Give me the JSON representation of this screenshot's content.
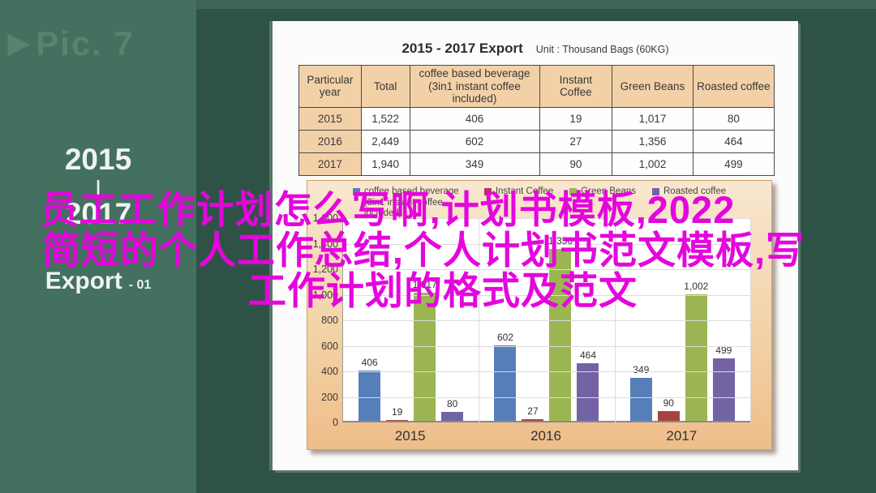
{
  "sidebar": {
    "play_icon": "▶",
    "pic_label": "Pic. 7",
    "year_start": "2015",
    "divider": "|",
    "year_end": "2017",
    "export_label": "Export",
    "export_suffix": "- 01"
  },
  "panel": {
    "title": "2015 - 2017 Export",
    "unit": "Unit : Thousand Bags (60KG)",
    "table": {
      "headers": [
        "Particular year",
        "Total",
        "coffee based beverage (3in1 instant coffee included)",
        "Instant Coffee",
        "Green Beans",
        "Roasted coffee"
      ],
      "rows": [
        {
          "cells": [
            "2015",
            "1,522",
            "406",
            "19",
            "1,017",
            "80"
          ]
        },
        {
          "cells": [
            "2016",
            "2,449",
            "602",
            "27",
            "1,356",
            "464"
          ]
        },
        {
          "cells": [
            "2017",
            "1,940",
            "349",
            "90",
            "1,002",
            "499"
          ]
        }
      ]
    }
  },
  "chart_data": {
    "type": "bar",
    "title": "2015 - 2017 Export",
    "unit_label": "Unit : Thousand Bags (60KG)",
    "categories": [
      "2015",
      "2016",
      "2017"
    ],
    "series": [
      {
        "name": "coffee based beverage (3in1 instant coffee included)",
        "color": "#567EB9",
        "values": [
          406,
          602,
          349
        ]
      },
      {
        "name": "Instant Coffee",
        "color": "#A8443F",
        "values": [
          19,
          27,
          90
        ]
      },
      {
        "name": "Green Beans",
        "color": "#9CB553",
        "values": [
          1017,
          1356,
          1002
        ]
      },
      {
        "name": "Roasted coffee",
        "color": "#7363A4",
        "values": [
          80,
          464,
          499
        ]
      }
    ],
    "ylim": [
      0,
      1600
    ],
    "ytick_step": 200,
    "grid": true,
    "legend_position": "top",
    "value_labels": true
  },
  "overlay": {
    "color": "#E406DC",
    "lines": [
      "员工工作计划怎么写啊,计划书模板,2022",
      "简短的个人工作总结,个人计划书范文模板,写",
      "工作计划的格式及范文"
    ]
  }
}
